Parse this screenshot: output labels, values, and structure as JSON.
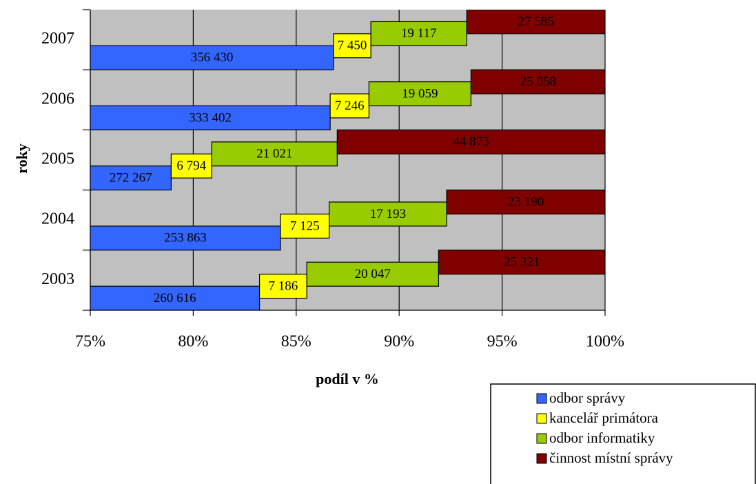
{
  "chart_data": {
    "type": "bar",
    "orientation": "horizontal",
    "stacked_percent": true,
    "xlabel": "podíl v %",
    "ylabel": "roky",
    "categories": [
      "2003",
      "2004",
      "2005",
      "2006",
      "2007"
    ],
    "series": [
      {
        "name": "odbor správy",
        "color": "#3366ff",
        "values": [
          260616,
          253863,
          272267,
          333402,
          356430
        ],
        "value_labels": [
          "260 616",
          "253 863",
          "272 267",
          "333 402",
          "356 430"
        ]
      },
      {
        "name": "kancelář primátora",
        "color": "#ffff00",
        "values": [
          7186,
          7125,
          6794,
          7246,
          7450
        ],
        "value_labels": [
          "7 186",
          "7 125",
          "6 794",
          "7 246",
          "7 450"
        ]
      },
      {
        "name": "odbor informatiky",
        "color": "#99cc00",
        "values": [
          20047,
          17193,
          21021,
          19059,
          19117
        ],
        "value_labels": [
          "20 047",
          "17 193",
          "21 021",
          "19 059",
          "19 117"
        ]
      },
      {
        "name": "činnost místní správy",
        "color": "#800000",
        "values": [
          25321,
          23190,
          44873,
          25058,
          27585
        ],
        "value_labels": [
          "25 321",
          "23 190",
          "44 873",
          "25 058",
          "27 585"
        ]
      }
    ],
    "xlim": [
      75,
      100
    ],
    "xticks": [
      {
        "value": 75,
        "label": "75%"
      },
      {
        "value": 80,
        "label": "80%"
      },
      {
        "value": 85,
        "label": "85%"
      },
      {
        "value": 90,
        "label": "90%"
      },
      {
        "value": 95,
        "label": "95%"
      },
      {
        "value": 100,
        "label": "100%"
      }
    ],
    "grid": true,
    "plot_background": "#c0c0c0",
    "legend": "bottom-right"
  }
}
